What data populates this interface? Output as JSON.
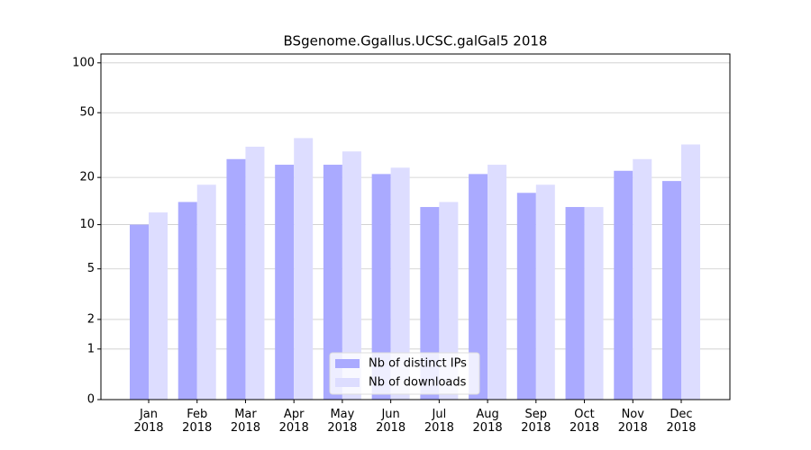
{
  "chart_data": {
    "type": "bar",
    "title": "BSgenome.Ggallus.UCSC.galGal5 2018",
    "categories": [
      "Jan\n2018",
      "Feb\n2018",
      "Mar\n2018",
      "Apr\n2018",
      "May\n2018",
      "Jun\n2018",
      "Jul\n2018",
      "Aug\n2018",
      "Sep\n2018",
      "Oct\n2018",
      "Nov\n2018",
      "Dec\n2018"
    ],
    "series": [
      {
        "name": "Nb of distinct IPs",
        "color": "#aaaaff",
        "values": [
          10,
          14,
          26,
          24,
          24,
          21,
          13,
          21,
          16,
          13,
          22,
          19
        ]
      },
      {
        "name": "Nb of downloads",
        "color": "#ddddff",
        "values": [
          12,
          18,
          31,
          35,
          29,
          23,
          14,
          24,
          18,
          13,
          26,
          32
        ]
      }
    ],
    "yscale": "log1p",
    "ylim": [
      0,
      113
    ],
    "yticks": [
      0,
      1,
      2,
      5,
      10,
      20,
      50,
      100
    ],
    "grid": true,
    "legend": "lower center"
  }
}
